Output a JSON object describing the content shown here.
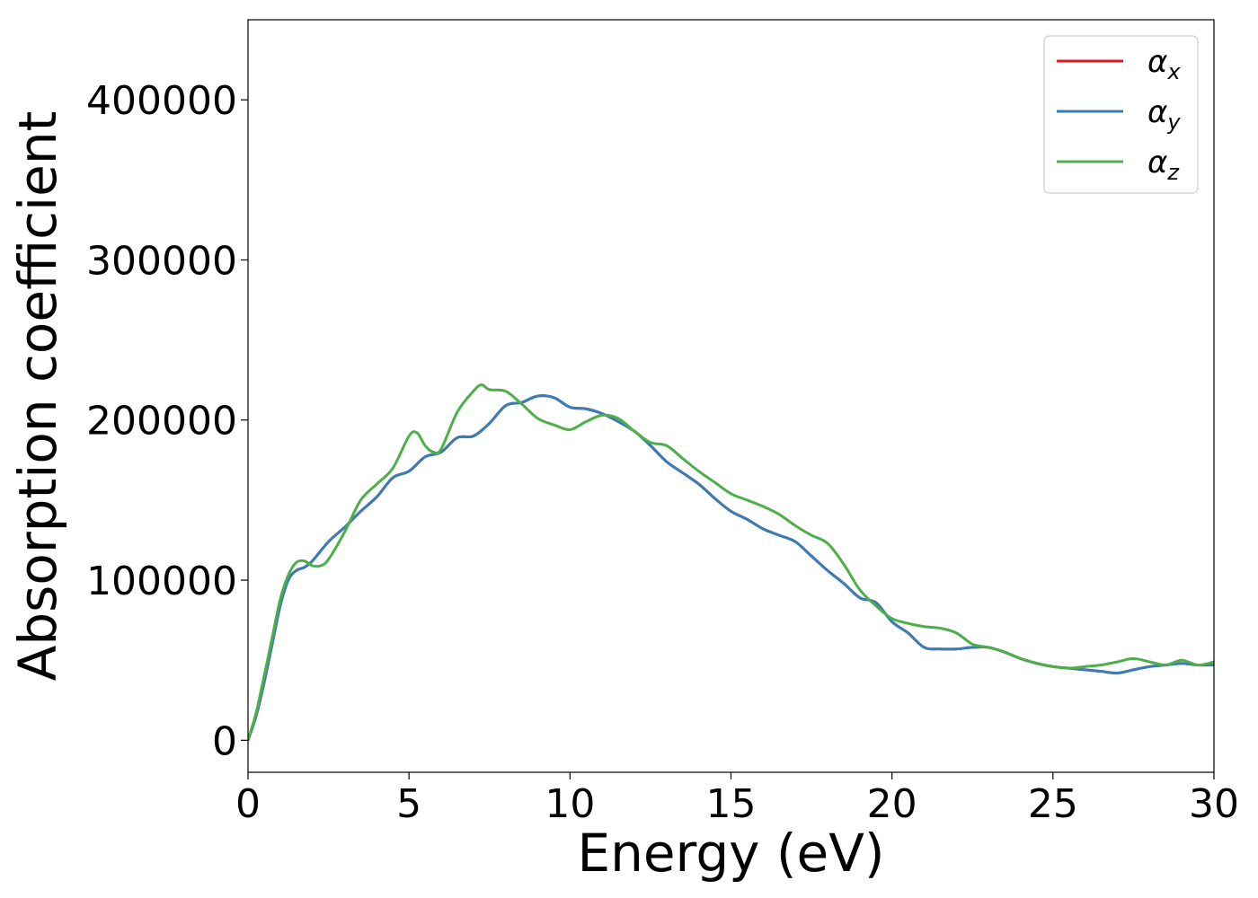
{
  "chart_data": {
    "type": "line",
    "title": "",
    "xlabel": "Energy (eV)",
    "ylabel": "Absorption coefficient",
    "xlim": [
      0,
      30
    ],
    "ylim": [
      -20000,
      450000
    ],
    "xticks": [
      0,
      5,
      10,
      15,
      20,
      25,
      30
    ],
    "xtick_labels": [
      "0",
      "5",
      "10",
      "15",
      "20",
      "25",
      "30"
    ],
    "yticks": [
      0,
      100000,
      200000,
      300000,
      400000
    ],
    "ytick_labels": [
      "0",
      "100000",
      "200000",
      "300000",
      "400000"
    ],
    "grid": false,
    "legend_position": "top-right",
    "series": [
      {
        "name": "α_x",
        "legend_base": "α",
        "legend_sub": "x",
        "color": "#e41a1c",
        "x": [
          0,
          0.25,
          0.5,
          0.75,
          1.0,
          1.25,
          1.5,
          1.75,
          2.0,
          2.5,
          3.0,
          3.5,
          4.0,
          4.5,
          5.0,
          5.5,
          6.0,
          6.5,
          7.0,
          7.5,
          8.0,
          8.5,
          9.0,
          9.5,
          10.0,
          10.5,
          11.0,
          11.5,
          12.0,
          12.5,
          13.0,
          13.5,
          14.0,
          14.5,
          15.0,
          15.5,
          16.0,
          16.5,
          17.0,
          17.5,
          18.0,
          18.5,
          19.0,
          19.5,
          20.0,
          20.5,
          21.0,
          21.5,
          22.0,
          22.5,
          23.0,
          23.5,
          24.0,
          24.5,
          25.0,
          25.5,
          26.0,
          26.5,
          27.0,
          27.5,
          28.0,
          28.5,
          29.0,
          29.5,
          30.0
        ],
        "y": [
          0,
          15000,
          36000,
          60000,
          84000,
          100000,
          106000,
          108000,
          112000,
          124000,
          133000,
          143000,
          152000,
          164000,
          168000,
          177000,
          180000,
          189000,
          190000,
          198000,
          209000,
          211000,
          215000,
          214000,
          208000,
          207000,
          204000,
          199000,
          193000,
          184000,
          174000,
          167000,
          160000,
          151000,
          143000,
          138000,
          132000,
          128000,
          124000,
          115000,
          106000,
          98000,
          89000,
          86000,
          74000,
          67000,
          58000,
          57000,
          57000,
          58000,
          58000,
          55000,
          51000,
          48000,
          46000,
          45000,
          44000,
          43000,
          42000,
          44000,
          46000,
          47000,
          48000,
          47000,
          47000
        ]
      },
      {
        "name": "α_y",
        "legend_base": "α",
        "legend_sub": "y",
        "color": "#377eb8",
        "x": [
          0,
          0.25,
          0.5,
          0.75,
          1.0,
          1.25,
          1.5,
          1.75,
          2.0,
          2.5,
          3.0,
          3.5,
          4.0,
          4.5,
          5.0,
          5.5,
          6.0,
          6.5,
          7.0,
          7.5,
          8.0,
          8.5,
          9.0,
          9.5,
          10.0,
          10.5,
          11.0,
          11.5,
          12.0,
          12.5,
          13.0,
          13.5,
          14.0,
          14.5,
          15.0,
          15.5,
          16.0,
          16.5,
          17.0,
          17.5,
          18.0,
          18.5,
          19.0,
          19.5,
          20.0,
          20.5,
          21.0,
          21.5,
          22.0,
          22.5,
          23.0,
          23.5,
          24.0,
          24.5,
          25.0,
          25.5,
          26.0,
          26.5,
          27.0,
          27.5,
          28.0,
          28.5,
          29.0,
          29.5,
          30.0
        ],
        "y": [
          0,
          15000,
          36000,
          60000,
          84000,
          100000,
          106000,
          108000,
          112000,
          124000,
          133000,
          143000,
          152000,
          164000,
          168000,
          177000,
          180000,
          189000,
          190000,
          198000,
          209000,
          211000,
          215000,
          214000,
          208000,
          207000,
          204000,
          199000,
          193000,
          184000,
          174000,
          167000,
          160000,
          151000,
          143000,
          138000,
          132000,
          128000,
          124000,
          115000,
          106000,
          98000,
          89000,
          86000,
          74000,
          67000,
          58000,
          57000,
          57000,
          58000,
          58000,
          55000,
          51000,
          48000,
          46000,
          45000,
          44000,
          43000,
          42000,
          44000,
          46000,
          47000,
          48000,
          47000,
          47000
        ]
      },
      {
        "name": "α_z",
        "legend_base": "α",
        "legend_sub": "z",
        "color": "#4daf4a",
        "x": [
          0,
          0.25,
          0.5,
          0.75,
          1.0,
          1.25,
          1.5,
          1.75,
          2.0,
          2.25,
          2.5,
          3.0,
          3.5,
          4.0,
          4.5,
          5.0,
          5.25,
          5.5,
          5.75,
          6.0,
          6.5,
          7.0,
          7.25,
          7.5,
          8.0,
          8.5,
          9.0,
          9.5,
          10.0,
          10.5,
          11.0,
          11.5,
          12.0,
          12.5,
          13.0,
          13.5,
          14.0,
          14.5,
          15.0,
          15.5,
          16.0,
          16.5,
          17.0,
          17.5,
          18.0,
          18.5,
          19.0,
          19.5,
          20.0,
          20.5,
          21.0,
          21.5,
          22.0,
          22.5,
          23.0,
          23.5,
          24.0,
          24.5,
          25.0,
          25.5,
          26.0,
          26.5,
          27.0,
          27.5,
          28.0,
          28.5,
          29.0,
          29.5,
          30.0
        ],
        "y": [
          0,
          17000,
          40000,
          64000,
          88000,
          103000,
          111000,
          112000,
          109000,
          109000,
          113000,
          130000,
          150000,
          160000,
          170000,
          190000,
          192000,
          184000,
          180000,
          182000,
          205000,
          218000,
          222000,
          219000,
          218000,
          210000,
          201000,
          197000,
          194000,
          199000,
          203000,
          201000,
          193000,
          186000,
          184000,
          176000,
          168000,
          161000,
          154000,
          150000,
          146000,
          141000,
          134000,
          128000,
          123000,
          110000,
          94000,
          84000,
          76000,
          73000,
          71000,
          70000,
          67000,
          60000,
          58000,
          55000,
          51000,
          48000,
          46000,
          45000,
          46000,
          47000,
          49000,
          51000,
          49000,
          47000,
          50000,
          47000,
          49000
        ]
      }
    ]
  }
}
